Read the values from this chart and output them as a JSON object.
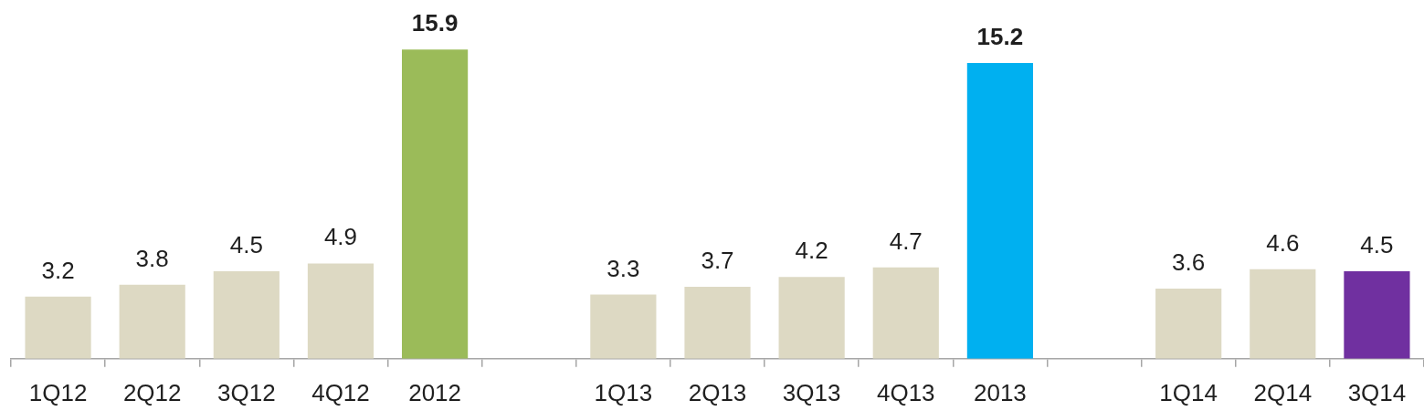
{
  "chart_data": {
    "type": "bar",
    "categories": [
      "1Q12",
      "2Q12",
      "3Q12",
      "4Q12",
      "2012",
      null,
      "1Q13",
      "2Q13",
      "3Q13",
      "4Q13",
      "2013",
      null,
      "1Q14",
      "2Q14",
      "3Q14"
    ],
    "series": [
      {
        "values": [
          3.2,
          3.8,
          4.5,
          4.9,
          null,
          null,
          3.3,
          3.7,
          4.2,
          4.7,
          null,
          null,
          3.6,
          4.6,
          4.5
        ],
        "colors": [
          "#ddd9c3",
          "#ddd9c3",
          "#ddd9c3",
          "#ddd9c3",
          null,
          null,
          "#ddd9c3",
          "#ddd9c3",
          "#ddd9c3",
          "#ddd9c3",
          null,
          null,
          "#ddd9c3",
          "#ddd9c3",
          "#7030a0"
        ]
      },
      {
        "values": [
          null,
          null,
          null,
          null,
          15.9,
          null,
          null,
          null,
          null,
          null,
          15.2,
          null,
          null,
          null,
          null
        ],
        "colors": [
          null,
          null,
          null,
          null,
          "#9bbb59",
          null,
          null,
          null,
          null,
          null,
          "#00b0f0",
          null,
          null,
          null,
          null
        ]
      }
    ],
    "data_labels": true,
    "legend": false
  }
}
